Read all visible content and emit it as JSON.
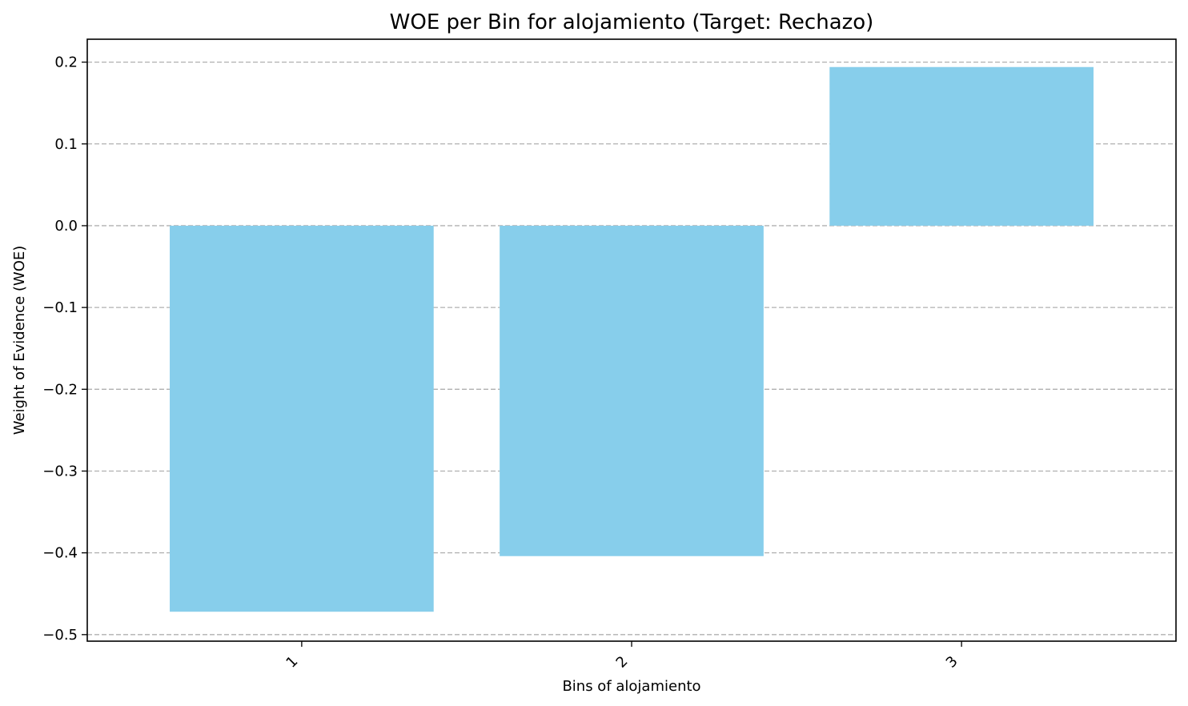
{
  "chart_data": {
    "type": "bar",
    "title": "WOE per Bin for alojamiento (Target: Rechazo)",
    "xlabel": "Bins of alojamiento",
    "ylabel": "Weight of Evidence (WOE)",
    "categories": [
      "1",
      "2",
      "3"
    ],
    "values": [
      -0.472,
      -0.404,
      0.194
    ],
    "ylim": [
      -0.508,
      0.228
    ],
    "yticks": [
      -0.5,
      -0.4,
      -0.3,
      -0.2,
      -0.1,
      0.0,
      0.1,
      0.2
    ],
    "ytick_labels": [
      "−0.5",
      "−0.4",
      "−0.3",
      "−0.2",
      "−0.1",
      "0.0",
      "0.1",
      "0.2"
    ],
    "bar_color": "#87CEEB",
    "grid": "y-axis dashed",
    "legend": "none",
    "xtick_rotation_deg": 45
  }
}
